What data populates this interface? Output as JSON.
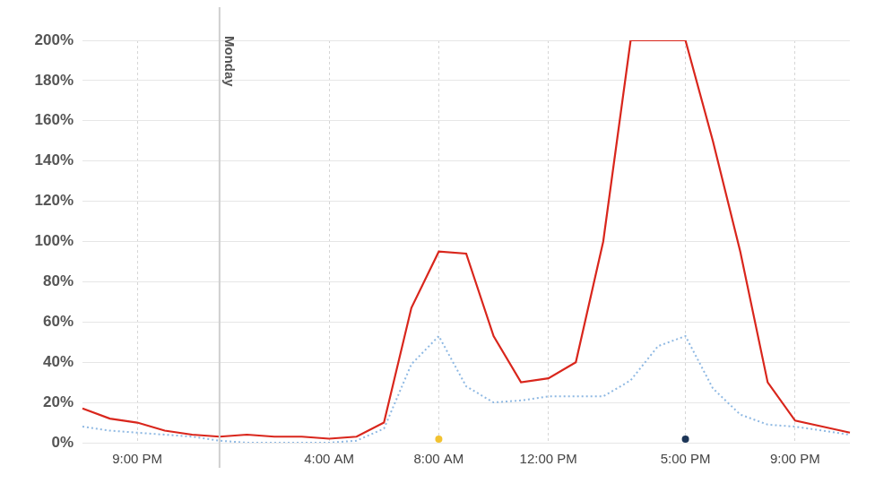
{
  "chart_data": {
    "type": "line",
    "categories": [
      null,
      null,
      "9:00 PM",
      null,
      null,
      null,
      null,
      null,
      null,
      "4:00 AM",
      null,
      null,
      null,
      "8:00 AM",
      null,
      null,
      null,
      "12:00 PM",
      null,
      null,
      null,
      null,
      "5:00 PM",
      null,
      null,
      null,
      "9:00 PM",
      null,
      null
    ],
    "series": [
      {
        "color": "#d9261c",
        "line_style": "solid",
        "values": [
          17,
          12,
          10,
          6,
          4,
          3,
          4,
          3,
          3,
          2,
          3,
          10,
          67,
          95,
          94,
          53,
          30,
          32,
          40,
          100,
          200,
          200,
          200,
          150,
          95,
          30,
          11,
          8,
          5
        ]
      },
      {
        "color": "#8fb9e3",
        "line_style": "dotted",
        "values": [
          8,
          6,
          5,
          4,
          3,
          1,
          0,
          0,
          0,
          0,
          1,
          7,
          39,
          53,
          28,
          20,
          21,
          23,
          23,
          23,
          31,
          48,
          53,
          27,
          14,
          9,
          8,
          6,
          4
        ]
      }
    ],
    "ylim": [
      0,
      200
    ],
    "yticks": [
      {
        "value": 0,
        "label": "0%"
      },
      {
        "value": 20,
        "label": "20%"
      },
      {
        "value": 40,
        "label": "40%"
      },
      {
        "value": 60,
        "label": "60%"
      },
      {
        "value": 80,
        "label": "80%"
      },
      {
        "value": 100,
        "label": "100%"
      },
      {
        "value": 120,
        "label": "120%"
      },
      {
        "value": 140,
        "label": "140%"
      },
      {
        "value": 160,
        "label": "160%"
      },
      {
        "value": 180,
        "label": "180%"
      },
      {
        "value": 200,
        "label": "200%"
      }
    ],
    "grid": true,
    "annotations": [
      {
        "text": "Monday",
        "index": 5
      },
      {
        "index": 13,
        "marker": "circle",
        "color": "#f2c230"
      },
      {
        "index": 22,
        "marker": "circle",
        "color": "#1c3557"
      }
    ]
  }
}
